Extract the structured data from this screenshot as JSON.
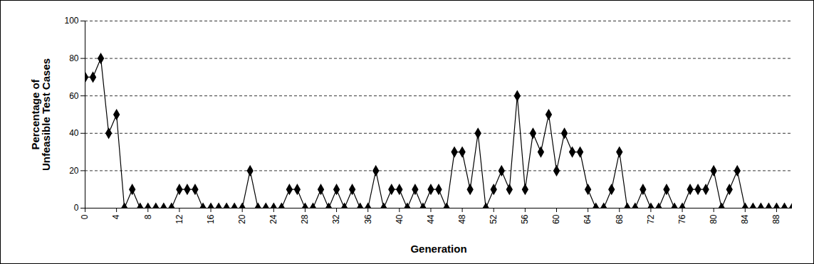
{
  "chart_data": {
    "type": "line",
    "xlabel": "Generation",
    "ylabel": "Percentage of Unfeasible Test Cases",
    "x": [
      0,
      1,
      2,
      3,
      4,
      5,
      6,
      7,
      8,
      9,
      10,
      11,
      12,
      13,
      14,
      15,
      16,
      17,
      18,
      19,
      20,
      21,
      22,
      23,
      24,
      25,
      26,
      27,
      28,
      29,
      30,
      31,
      32,
      33,
      34,
      35,
      36,
      37,
      38,
      39,
      40,
      41,
      42,
      43,
      44,
      45,
      46,
      47,
      48,
      49,
      50,
      51,
      52,
      53,
      54,
      55,
      56,
      57,
      58,
      59,
      60,
      61,
      62,
      63,
      64,
      65,
      66,
      67,
      68,
      69,
      70,
      71,
      72,
      73,
      74,
      75,
      76,
      77,
      78,
      79,
      80,
      81,
      82,
      83,
      84,
      85,
      86,
      87,
      88,
      89,
      90
    ],
    "values": [
      70,
      70,
      80,
      40,
      50,
      0,
      10,
      0,
      0,
      0,
      0,
      0,
      10,
      10,
      10,
      0,
      0,
      0,
      0,
      0,
      0,
      20,
      0,
      0,
      0,
      0,
      10,
      10,
      0,
      0,
      10,
      0,
      10,
      0,
      10,
      0,
      0,
      20,
      0,
      10,
      10,
      0,
      10,
      0,
      10,
      10,
      0,
      30,
      30,
      10,
      40,
      0,
      10,
      20,
      10,
      60,
      10,
      40,
      30,
      50,
      20,
      40,
      30,
      30,
      10,
      0,
      0,
      10,
      30,
      0,
      0,
      10,
      0,
      0,
      10,
      0,
      0,
      10,
      10,
      10,
      20,
      0,
      10,
      20,
      0,
      0,
      0,
      0,
      0,
      0,
      0
    ],
    "color": "#000000",
    "marker": "diamond",
    "xlim": [
      0,
      90
    ],
    "xticks": [
      0,
      4,
      8,
      12,
      16,
      20,
      24,
      28,
      32,
      36,
      40,
      44,
      48,
      52,
      56,
      60,
      64,
      68,
      72,
      76,
      80,
      84,
      88
    ],
    "ylim": [
      0,
      100
    ],
    "yticks": [
      0,
      20,
      40,
      60,
      80,
      100
    ],
    "grid": true
  }
}
